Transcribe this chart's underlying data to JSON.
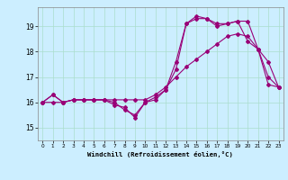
{
  "xlabel": "Windchill (Refroidissement éolien,°C)",
  "ylabel": "",
  "background_color": "#cceeff",
  "grid_color": "#aaddcc",
  "line_color": "#990077",
  "xlim": [
    -0.5,
    23.5
  ],
  "ylim": [
    14.5,
    19.75
  ],
  "yticks": [
    15,
    16,
    17,
    18,
    19
  ],
  "xticks": [
    0,
    1,
    2,
    3,
    4,
    5,
    6,
    7,
    8,
    9,
    10,
    11,
    12,
    13,
    14,
    15,
    16,
    17,
    18,
    19,
    20,
    21,
    22,
    23
  ],
  "lines": [
    [
      16.0,
      16.3,
      16.0,
      16.1,
      16.1,
      16.1,
      16.1,
      15.9,
      15.8,
      15.4,
      16.0,
      16.1,
      16.5,
      17.6,
      19.1,
      19.4,
      19.3,
      19.0,
      19.1,
      19.2,
      19.2,
      18.1,
      17.0,
      16.6
    ],
    [
      16.0,
      16.0,
      16.0,
      16.1,
      16.1,
      16.1,
      16.1,
      16.1,
      16.1,
      16.1,
      16.1,
      16.3,
      16.6,
      17.0,
      17.4,
      17.7,
      18.0,
      18.3,
      18.6,
      18.7,
      18.6,
      18.1,
      17.6,
      16.6
    ],
    [
      16.0,
      16.3,
      16.0,
      16.1,
      16.1,
      16.1,
      16.1,
      16.0,
      15.7,
      15.5,
      16.0,
      16.2,
      16.5,
      17.3,
      19.1,
      19.3,
      19.3,
      19.1,
      19.1,
      19.2,
      18.4,
      18.1,
      16.7,
      16.6
    ]
  ]
}
